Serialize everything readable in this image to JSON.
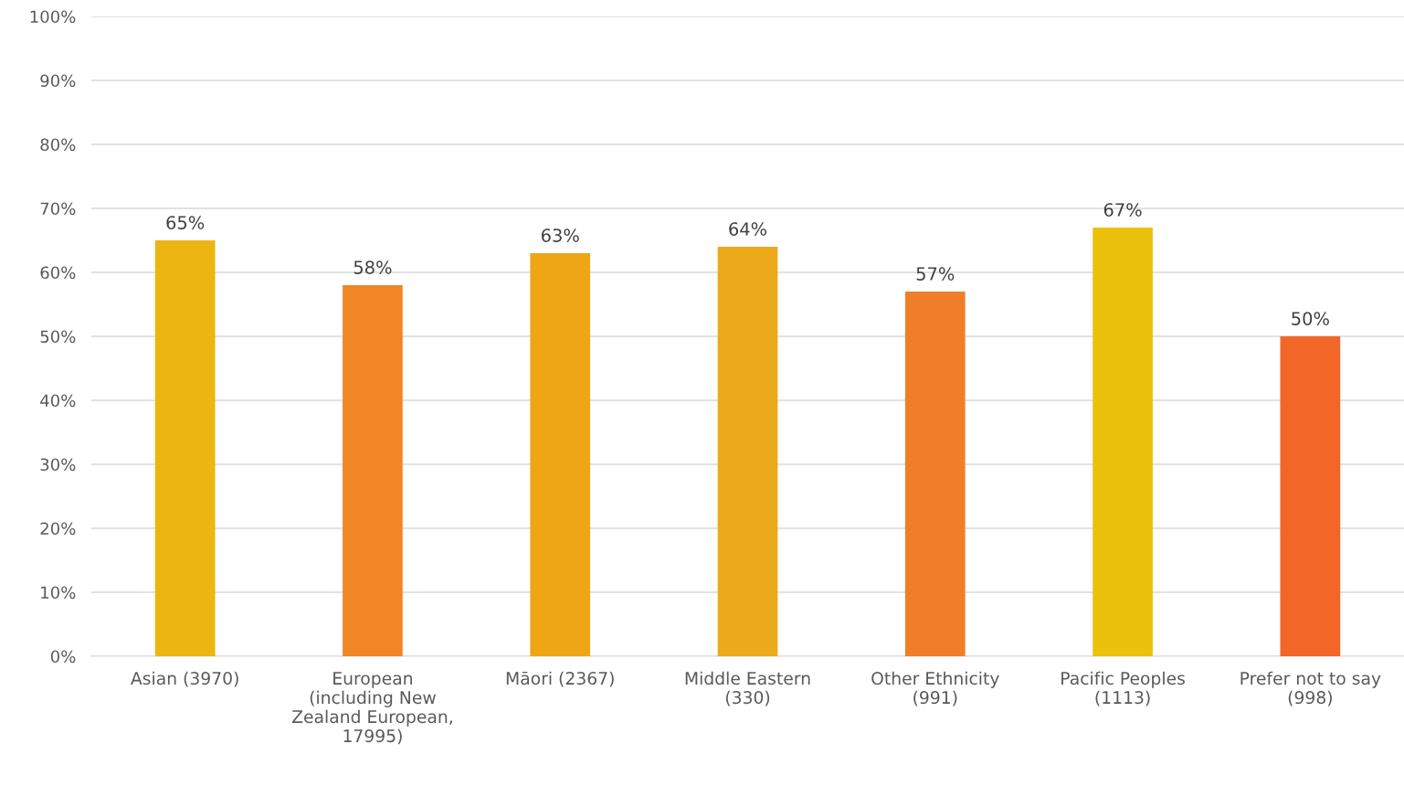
{
  "chart_data": {
    "type": "bar",
    "categories": [
      "Asian (3970)",
      "European (including New Zealand European, 17995)",
      "Māori (2367)",
      "Middle Eastern (330)",
      "Other Ethnicity (991)",
      "Pacific Peoples (1113)",
      "Prefer not to say (998)"
    ],
    "values": [
      65,
      58,
      63,
      64,
      57,
      67,
      50
    ],
    "value_labels": [
      "65%",
      "58%",
      "63%",
      "64%",
      "57%",
      "67%",
      "50%"
    ],
    "colors": [
      "#edb512",
      "#f08626",
      "#eea617",
      "#eca919",
      "#f07e28",
      "#ecc10c",
      "#f26628"
    ],
    "ylim": [
      0,
      100
    ],
    "yticks": [
      {
        "value": 0,
        "label": "0%"
      },
      {
        "value": 10,
        "label": "10%"
      },
      {
        "value": 20,
        "label": "20%"
      },
      {
        "value": 30,
        "label": "30%"
      },
      {
        "value": 40,
        "label": "40%"
      },
      {
        "value": 50,
        "label": "50%"
      },
      {
        "value": 60,
        "label": "60%"
      },
      {
        "value": 70,
        "label": "70%"
      },
      {
        "value": 80,
        "label": "80%"
      },
      {
        "value": 90,
        "label": "90%"
      },
      {
        "value": 100,
        "label": "100%"
      }
    ],
    "grid": "y"
  }
}
